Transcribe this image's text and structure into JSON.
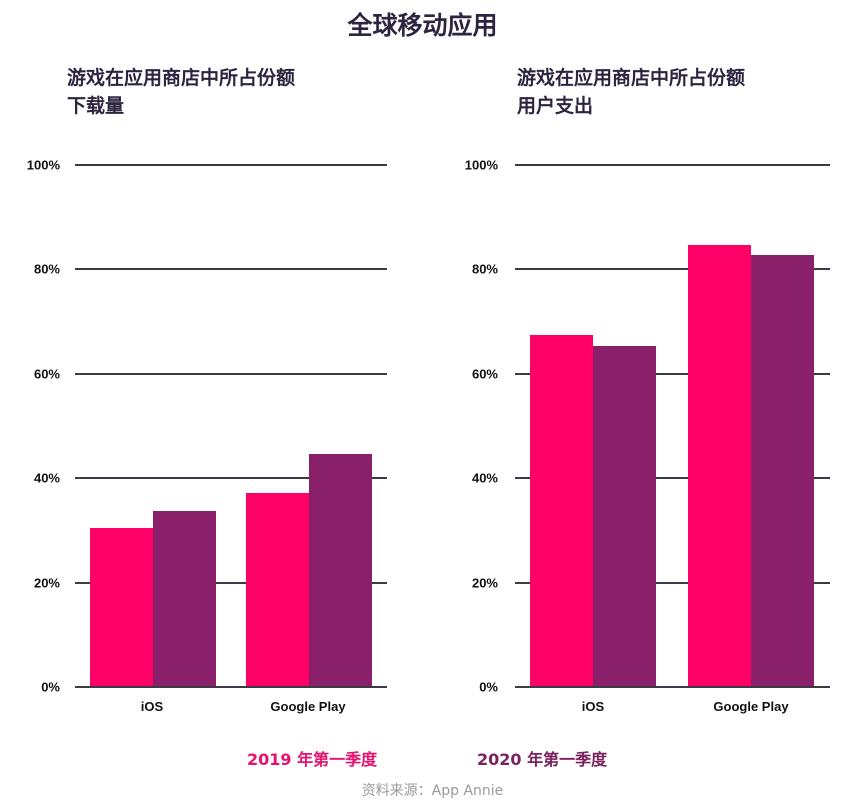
{
  "title": "全球移动应用",
  "colors": {
    "series_2019": "#ff0066",
    "series_2020": "#8a1f6a",
    "gridline": "#3d3a45",
    "title": "#2d2540",
    "source": "#9a9a9a"
  },
  "legend": [
    {
      "label": "2019 年第一季度",
      "color": "#e5126f"
    },
    {
      "label": "2020 年第一季度",
      "color": "#7a2260"
    }
  ],
  "source": "资料来源：App Annie",
  "charts": [
    {
      "subtitle_line1": "游戏在应用商店中所占份额",
      "subtitle_line2": "下载量",
      "yticks": [
        "100%",
        "80%",
        "60%",
        "40%",
        "20%",
        "0%"
      ],
      "categories": [
        "iOS",
        "Google Play"
      ]
    },
    {
      "subtitle_line1": "游戏在应用商店中所占份额",
      "subtitle_line2": "用户支出",
      "yticks": [
        "100%",
        "80%",
        "60%",
        "40%",
        "20%",
        "0%"
      ],
      "categories": [
        "iOS",
        "Google Play"
      ]
    }
  ],
  "chart_data": [
    {
      "type": "bar",
      "title": "游戏在应用商店中所占份额 下载量",
      "categories": [
        "iOS",
        "Google Play"
      ],
      "series": [
        {
          "name": "2019 年第一季度",
          "values": [
            30.5,
            37.2
          ]
        },
        {
          "name": "2020 年第一季度",
          "values": [
            33.7,
            44.6
          ]
        }
      ],
      "xlabel": "",
      "ylabel": "",
      "ylim": [
        0,
        100
      ],
      "yticks": [
        "0%",
        "20%",
        "40%",
        "60%",
        "80%",
        "100%"
      ],
      "grid": true,
      "legend_position": "bottom"
    },
    {
      "type": "bar",
      "title": "游戏在应用商店中所占份额 用户支出",
      "categories": [
        "iOS",
        "Google Play"
      ],
      "series": [
        {
          "name": "2019 年第一季度",
          "values": [
            67.4,
            84.7
          ]
        },
        {
          "name": "2020 年第一季度",
          "values": [
            65.3,
            82.8
          ]
        }
      ],
      "xlabel": "",
      "ylabel": "",
      "ylim": [
        0,
        100
      ],
      "yticks": [
        "0%",
        "20%",
        "40%",
        "60%",
        "80%",
        "100%"
      ],
      "grid": true,
      "legend_position": "bottom"
    }
  ]
}
